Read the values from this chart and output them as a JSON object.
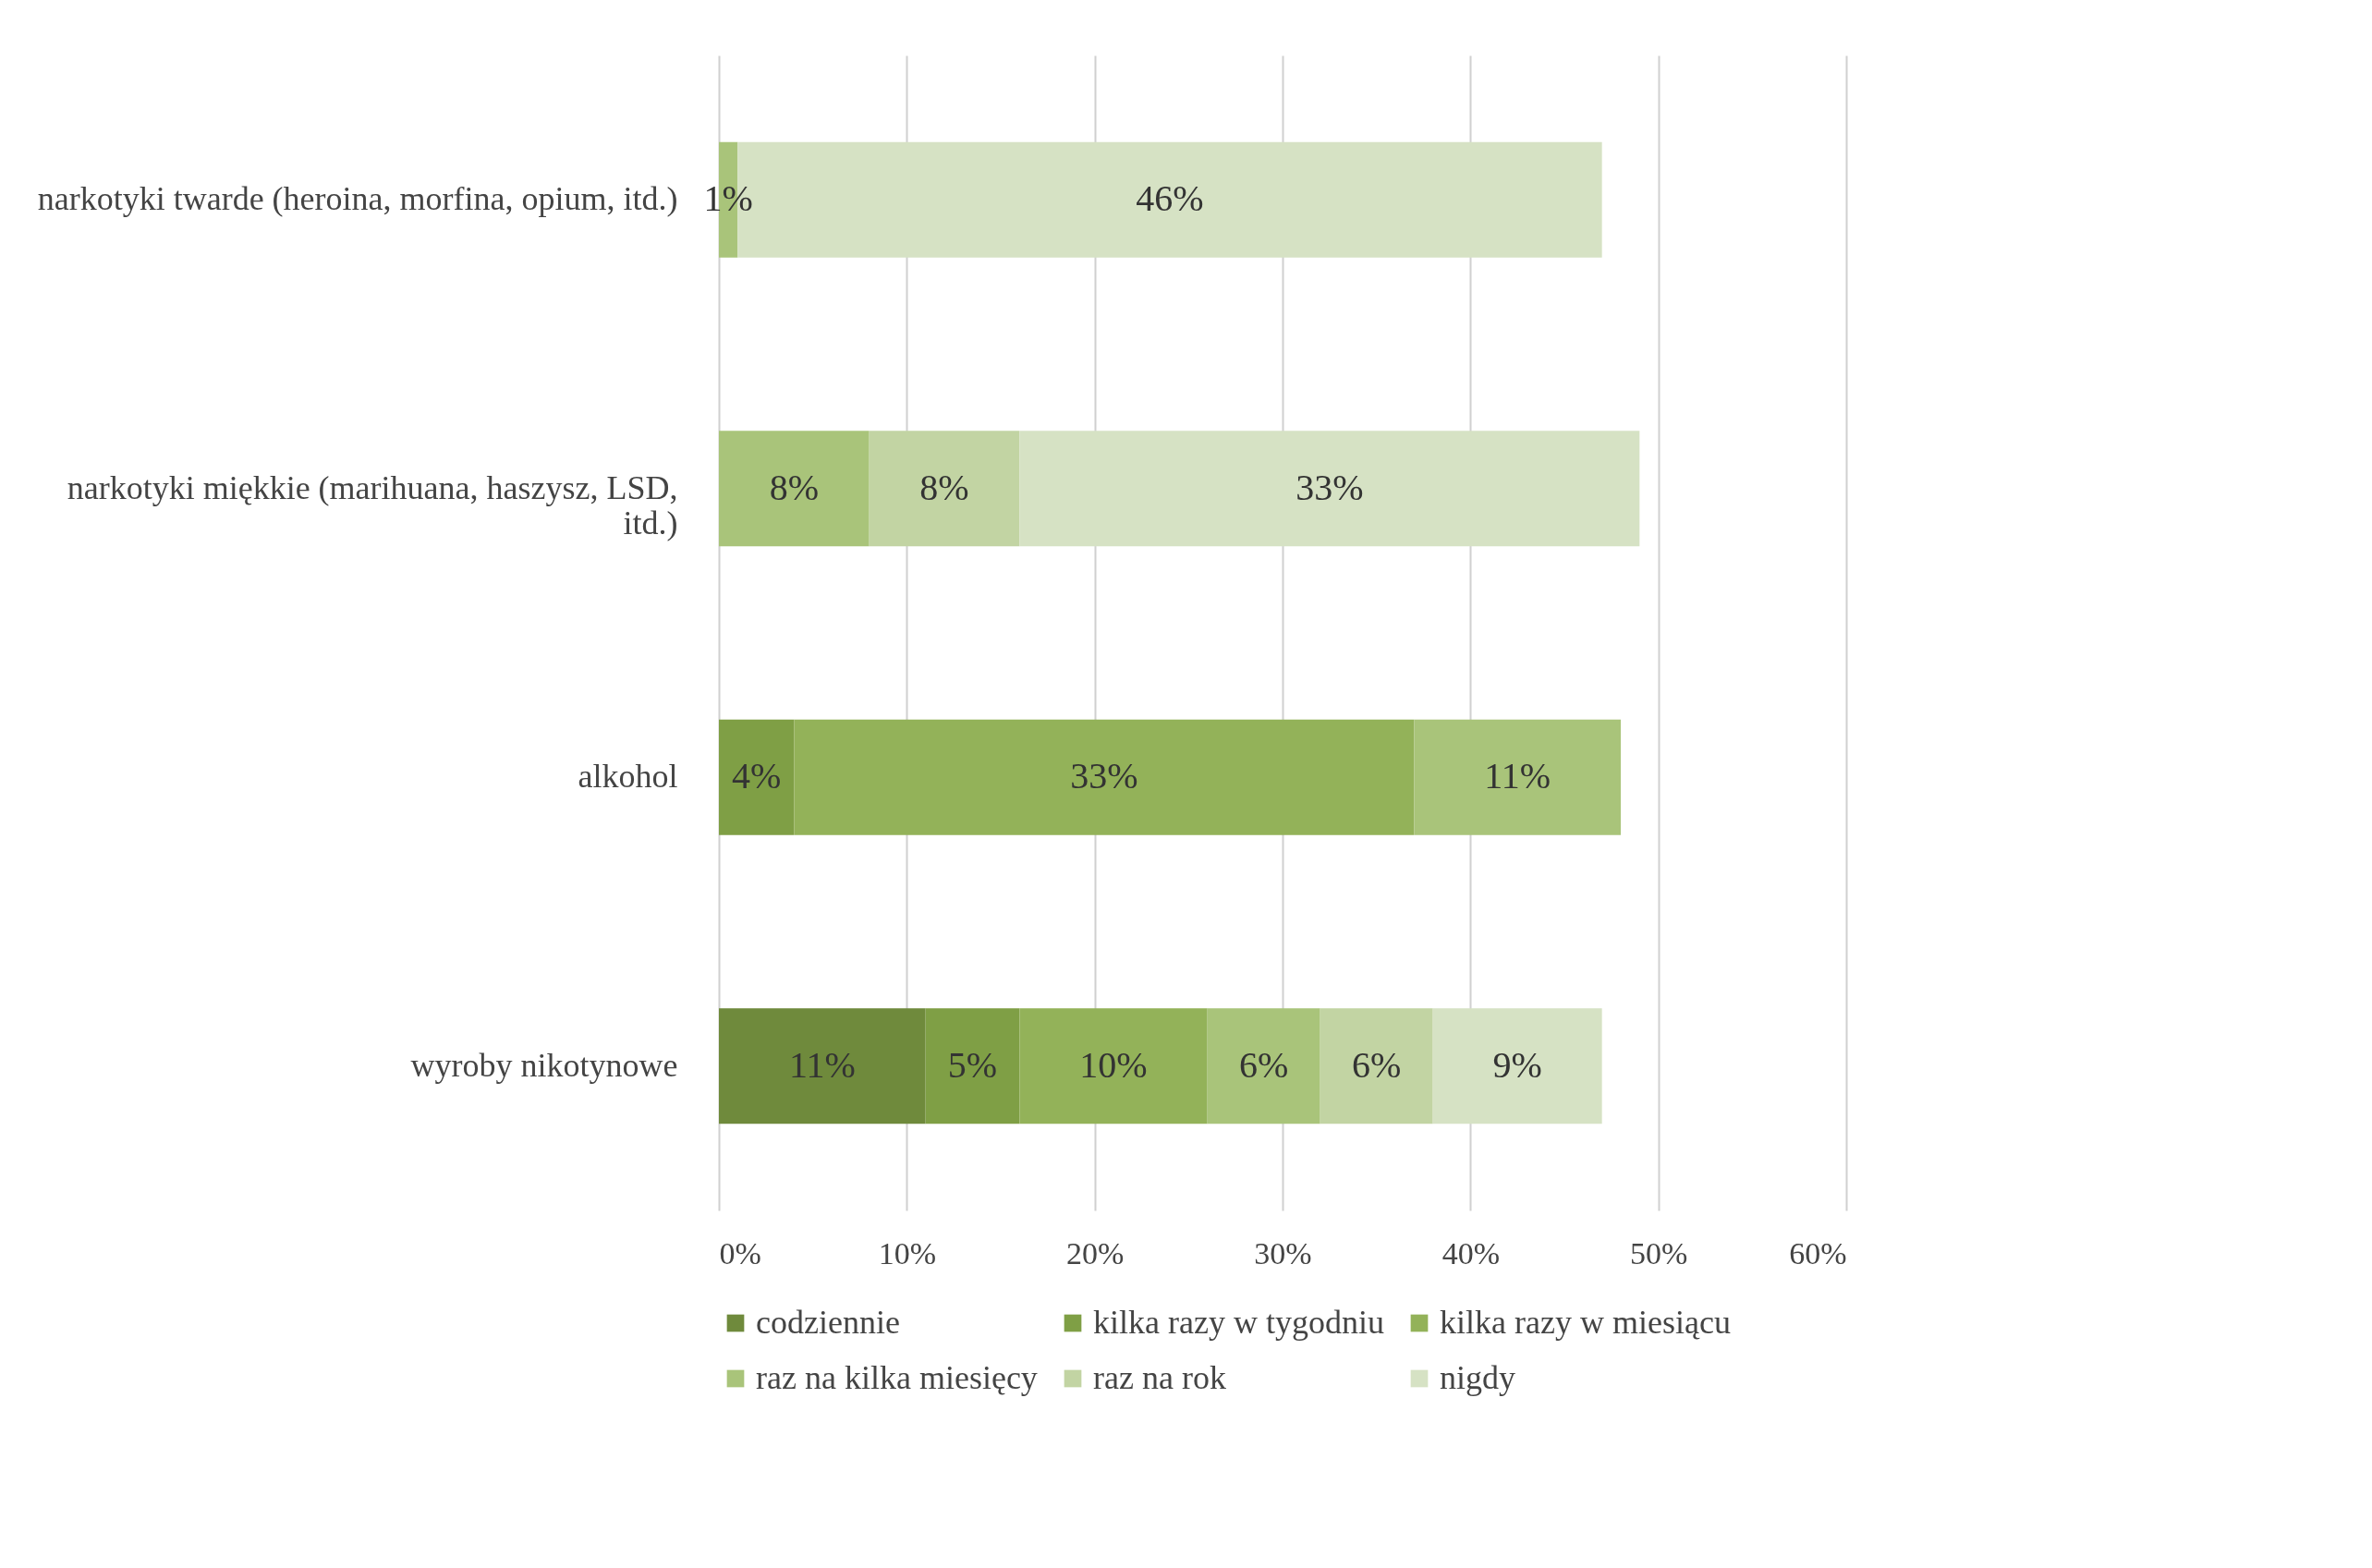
{
  "chart_data": {
    "type": "bar",
    "orientation": "horizontal",
    "stacked": true,
    "grid": "x",
    "legend": "bottom",
    "categories": [
      "narkotyki twarde (heroina, morfina, opium, itd.)",
      "narkotyki miękkie (marihuana, haszysz, LSD, itd.)",
      "alkohol",
      "wyroby nikotynowe"
    ],
    "series": [
      {
        "name": "codziennie",
        "color": "#6f8a3c",
        "values": [
          null,
          null,
          null,
          11
        ],
        "value_labels": [
          null,
          null,
          null,
          "11%"
        ]
      },
      {
        "name": "kilka razy w tygodniu",
        "color": "#7f9f45",
        "values": [
          null,
          null,
          4,
          5
        ],
        "value_labels": [
          null,
          null,
          "4%",
          "5%"
        ]
      },
      {
        "name": "kilka razy w miesiącu",
        "color": "#93b259",
        "values": [
          null,
          null,
          33,
          10
        ],
        "value_labels": [
          null,
          null,
          "33%",
          "10%"
        ]
      },
      {
        "name": "raz na kilka miesięcy",
        "color": "#a9c47a",
        "values": [
          1,
          8,
          11,
          6
        ],
        "value_labels": [
          "1%",
          "8%",
          "11%",
          "6%"
        ]
      },
      {
        "name": "raz na rok",
        "color": "#c2d4a3",
        "values": [
          null,
          8,
          null,
          6
        ],
        "value_labels": [
          null,
          "8%",
          null,
          "6%"
        ]
      },
      {
        "name": "nigdy",
        "color": "#d6e2c4",
        "values": [
          46,
          33,
          null,
          9
        ],
        "value_labels": [
          "46%",
          "33%",
          null,
          "9%"
        ]
      }
    ],
    "xlim": [
      0,
      60
    ],
    "xticks": [
      {
        "value": 0,
        "label": "0%"
      },
      {
        "value": 10,
        "label": "10%"
      },
      {
        "value": 20,
        "label": "20%"
      },
      {
        "value": 30,
        "label": "30%"
      },
      {
        "value": 40,
        "label": "40%"
      },
      {
        "value": 50,
        "label": "50%"
      },
      {
        "value": 60,
        "label": "60%"
      }
    ]
  }
}
